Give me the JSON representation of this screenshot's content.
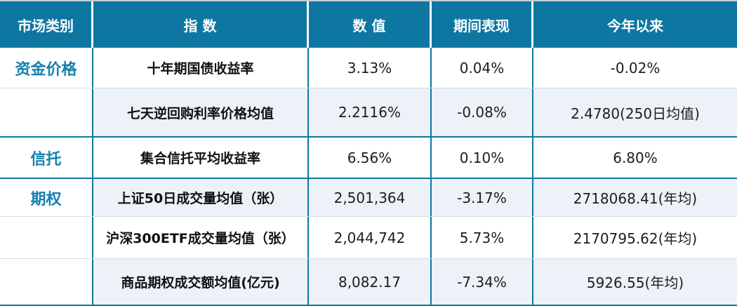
{
  "chart_data": {
    "type": "table",
    "title": "",
    "columns": [
      "市场类别",
      "指 数",
      "数 值",
      "期间表现",
      "今年以来"
    ],
    "rows": [
      [
        "资金价格",
        "十年期国债收益率",
        "3.13%",
        "0.04%",
        "-0.02%"
      ],
      [
        "",
        "七天逆回购利率价格均值",
        "2.2116%",
        "-0.08%",
        "2.4780(250日均值)"
      ],
      [
        "信托",
        "集合信托平均收益率",
        "6.56%",
        "0.10%",
        "6.80%"
      ],
      [
        "期权",
        "上证50日成交量均值（张）",
        "2,501,364",
        "-3.17%",
        "2718068.41(年均)"
      ],
      [
        "",
        "沪深300ETF成交量均值（张）",
        "2,044,742",
        "5.73%",
        "2170795.62(年均)"
      ],
      [
        "",
        "商品期权成交额均值(亿元)",
        "8,082.17",
        "-7.34%",
        "5926.55(年均)"
      ]
    ],
    "row_groups": [
      "资金价格",
      "资金价格",
      "信托",
      "期权",
      "期权",
      "期权"
    ],
    "shaded_rows": [
      1,
      3,
      5
    ],
    "group_end_rows": [
      1,
      2,
      5
    ],
    "legend": "none",
    "grid": "teal group separators, light inner separators"
  },
  "colors": {
    "header_bg": "#0d77a2",
    "header_text": "#ffffff",
    "accent_category_text": "#1681ae",
    "shade_row_bg": "#edf2f8",
    "teal_border": "#0d77a2",
    "light_border": "#d4dce6",
    "top_strip": "#c6ccd2",
    "body_text": "#1d1d1d"
  }
}
